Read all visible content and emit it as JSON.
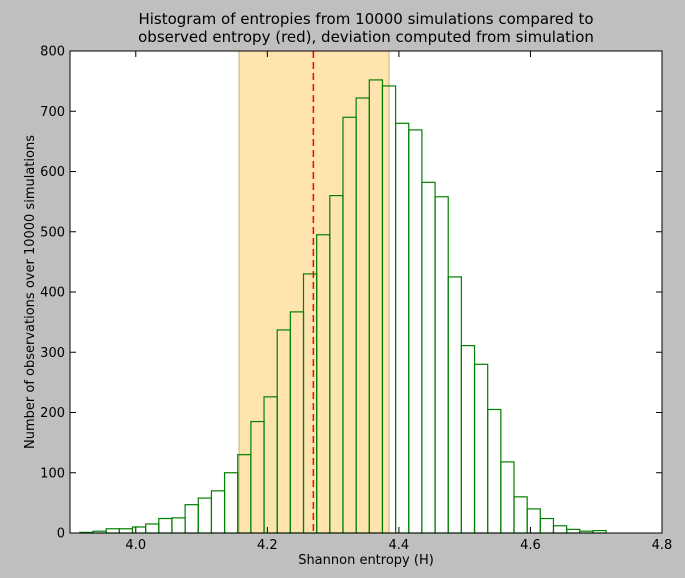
{
  "chart_data": {
    "type": "bar",
    "title_lines": [
      "Histogram of entropies from 10000 simulations compared to",
      "observed entropy (red), deviation computed from simulation"
    ],
    "xlabel": "Shannon entropy (H)",
    "ylabel": "Number of observations over 10000 simulations",
    "xlim": [
      3.9,
      4.8
    ],
    "ylim": [
      0,
      800
    ],
    "x_ticks": [
      4.0,
      4.2,
      4.4,
      4.6,
      4.8
    ],
    "x_tick_labels": [
      "4.0",
      "4.2",
      "4.4",
      "4.6",
      "4.8"
    ],
    "y_ticks": [
      0,
      100,
      200,
      300,
      400,
      500,
      600,
      700,
      800
    ],
    "y_tick_labels": [
      "0",
      "100",
      "200",
      "300",
      "400",
      "500",
      "600",
      "700",
      "800"
    ],
    "grid": false,
    "bin_start": 3.915,
    "bin_width": 0.02,
    "values": [
      1,
      3,
      7,
      7,
      10,
      15,
      24,
      25,
      47,
      58,
      70,
      100,
      130,
      185,
      226,
      337,
      367,
      430,
      495,
      560,
      690,
      722,
      752,
      742,
      680,
      669,
      582,
      558,
      425,
      311,
      280,
      205,
      118,
      60,
      40,
      24,
      12,
      6,
      3,
      4
    ],
    "observed_value": 4.27,
    "deviation_band": [
      4.157,
      4.385
    ],
    "colors": {
      "bars": "#008000",
      "observed_line": "#ff0000",
      "band_fill": "#ffe4b0",
      "band_edge": "#c8b070",
      "plot_bg": "#ffffff",
      "figure_bg": "#bfbfbf"
    }
  }
}
